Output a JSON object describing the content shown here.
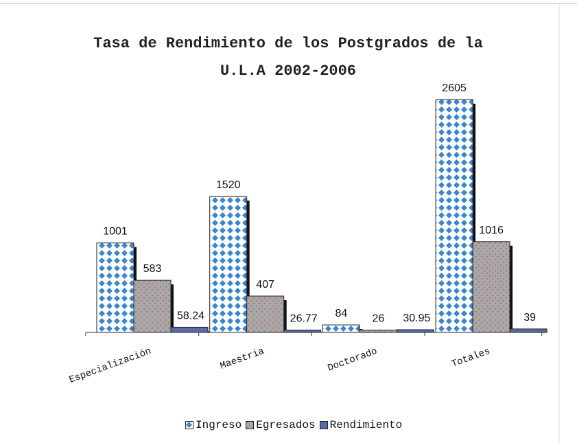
{
  "chart_data": {
    "type": "bar",
    "title": "Tasa de Rendimiento de los Postgrados de la U.L.A 2002-2006",
    "categories": [
      "Especialización",
      "Maestria",
      "Doctorado",
      "Totales"
    ],
    "series": [
      {
        "name": "Ingreso",
        "color": "#3a86cf",
        "pattern": "diamonds",
        "values": [
          1001,
          1520,
          84,
          2605
        ]
      },
      {
        "name": "Egresados",
        "color": "#a8a8a8",
        "pattern": "dots",
        "values": [
          583,
          407,
          26,
          1016
        ]
      },
      {
        "name": "Rendimiento",
        "color": "#5b6aa6",
        "values": [
          58.24,
          26.77,
          30.95,
          39
        ]
      }
    ],
    "legend": "bottom"
  }
}
